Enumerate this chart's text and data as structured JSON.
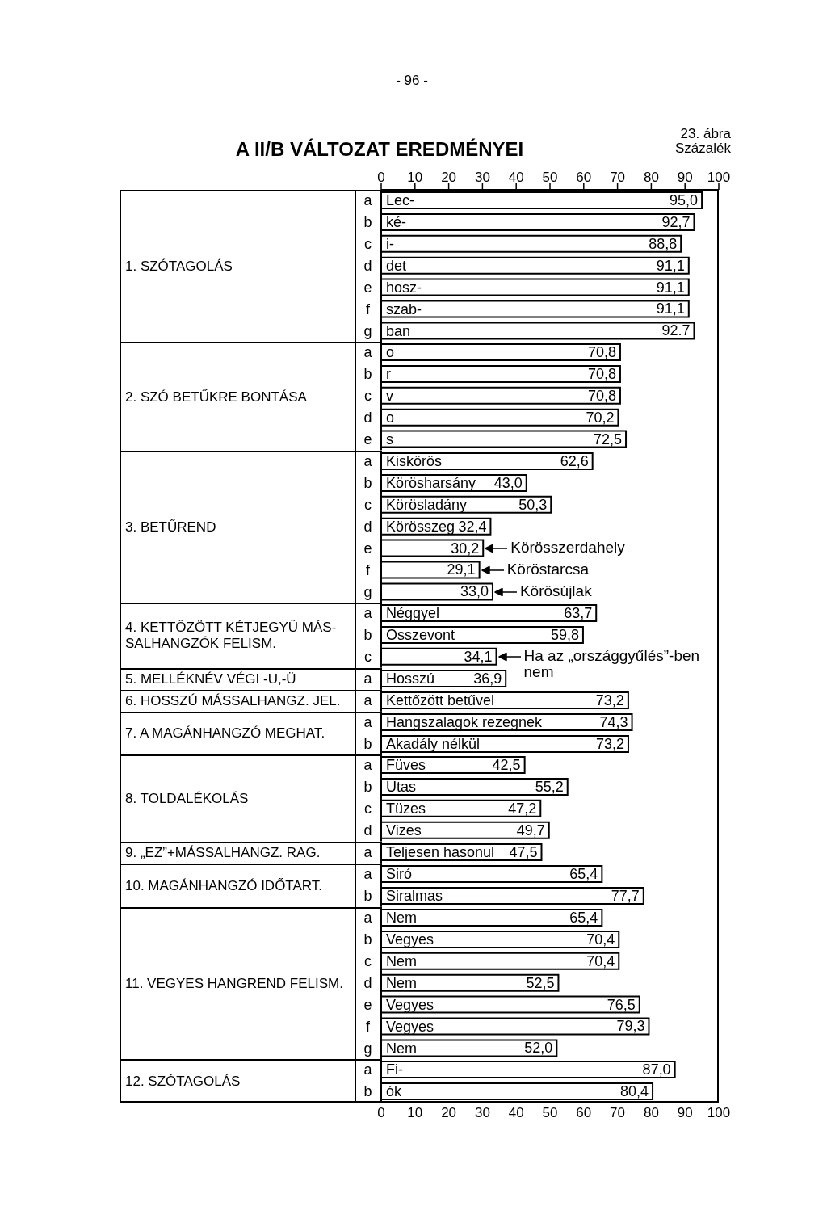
{
  "chart_data": [
    {
      "type": "bar",
      "orientation": "horizontal",
      "title": "A II/B VÁLTOZAT EREDMÉNYEI",
      "annotations": [
        "- 96 -",
        "23. ábra"
      ],
      "xlabel": "Százalék",
      "ylabel": "1. SZÓTAGOLÁS",
      "categories": [
        "a Lec-",
        "b ké-",
        "c i-",
        "d det",
        "e hosz-",
        "f szab-",
        "g ban"
      ],
      "values": [
        95.0,
        92.7,
        88.8,
        91.1,
        91.1,
        91.1,
        92.7
      ],
      "value_labels": [
        "95,0",
        "92,7",
        "88,8",
        "91,1",
        "91,1",
        "91,1",
        "92.7"
      ],
      "color": "#000000",
      "xlim": [
        0,
        100
      ],
      "xticks": [
        0,
        10,
        20,
        30,
        40,
        50,
        60,
        70,
        80,
        90,
        100
      ]
    },
    {
      "type": "bar",
      "orientation": "horizontal",
      "ylabel": "2. SZÓ BETŰKRE BONTÁSA",
      "categories": [
        "a o",
        "b r",
        "c v",
        "d o",
        "e s"
      ],
      "values": [
        70.8,
        70.8,
        70.8,
        70.2,
        72.5
      ],
      "value_labels": [
        "70,8",
        "70,8",
        "70,8",
        "70,2",
        "72,5"
      ],
      "color": "#000000",
      "xlim": [
        0,
        100
      ],
      "tick_labels": "y"
    },
    {
      "type": "bar",
      "orientation": "horizontal",
      "ylabel": "3. BETŰREND",
      "categories": [
        "a Kiskörös",
        "b Körösharsány",
        "c Körösladány",
        "d Körösszeg",
        "e",
        "f",
        "g"
      ],
      "values": [
        62.6,
        43.0,
        50.3,
        32.4,
        30.2,
        29.1,
        33.0
      ],
      "value_labels": [
        "62,6",
        "43,0",
        "50,3",
        "32,4",
        "30,2",
        "29,1",
        "33,0"
      ],
      "annotations": [
        {
          "text": "Körösszerdahely",
          "x": 30.2,
          "y": "e"
        },
        {
          "text": "Köröstarcsa",
          "x": 29.1,
          "y": "f"
        },
        {
          "text": "Körösújlak",
          "x": 33.0,
          "y": "g"
        }
      ],
      "color": "#000000",
      "xlim": [
        0,
        100
      ],
      "tick_labels": "y"
    },
    {
      "type": "bar",
      "orientation": "horizontal",
      "ylabel": "4. KETTŐZÖTT KÉTJEGYŰ MÁS-SALHANGZÓK FELISM.",
      "categories": [
        "a Néggyel",
        "b Összevont",
        "c"
      ],
      "values": [
        63.7,
        59.8,
        34.1
      ],
      "value_labels": [
        "63,7",
        "59,8",
        "34,1"
      ],
      "annotations": [
        {
          "text": "Ha az „országgyűlés”-ben nem",
          "x": 34.1,
          "y": "c"
        }
      ],
      "color": "#000000",
      "xlim": [
        0,
        100
      ],
      "tick_labels": "y"
    },
    {
      "type": "bar",
      "orientation": "horizontal",
      "ylabel": "5. MELLÉKNÉV VÉGI -U,-Ü",
      "categories": [
        "a Hosszú"
      ],
      "values": [
        36.9
      ],
      "value_labels": [
        "36,9"
      ],
      "color": "#000000",
      "xlim": [
        0,
        100
      ],
      "tick_labels": "y"
    },
    {
      "type": "bar",
      "orientation": "horizontal",
      "ylabel": "6. HOSSZÚ MÁSSALHANGZ. JEL.",
      "categories": [
        "a Kettőzött betűvel"
      ],
      "values": [
        73.2
      ],
      "value_labels": [
        "73,2"
      ],
      "color": "#000000",
      "xlim": [
        0,
        100
      ],
      "tick_labels": "y"
    },
    {
      "type": "bar",
      "orientation": "horizontal",
      "ylabel": "7. A MAGÁNHANGZÓ MEGHAT.",
      "categories": [
        "a Hangszalagok rezegnek",
        "b Akadály nélkül"
      ],
      "values": [
        74.3,
        73.2
      ],
      "value_labels": [
        "74,3",
        "73,2"
      ],
      "color": "#000000",
      "xlim": [
        0,
        100
      ],
      "tick_labels": "y"
    },
    {
      "type": "bar",
      "orientation": "horizontal",
      "ylabel": "8. TOLDALÉKOLÁS",
      "categories": [
        "a Füves",
        "b Utas",
        "c Tüzes",
        "d Vizes"
      ],
      "values": [
        42.5,
        55.2,
        47.2,
        49.7
      ],
      "value_labels": [
        "42,5",
        "55,2",
        "47,2",
        "49,7"
      ],
      "color": "#000000",
      "xlim": [
        0,
        100
      ],
      "tick_labels": "y"
    },
    {
      "type": "bar",
      "orientation": "horizontal",
      "ylabel": "9. „EZ”+MÁSSALHANGZ. RAG.",
      "categories": [
        "a Teljesen hasonul"
      ],
      "values": [
        47.5
      ],
      "value_labels": [
        "47,5"
      ],
      "color": "#000000",
      "xlim": [
        0,
        100
      ],
      "tick_labels": "y"
    },
    {
      "type": "bar",
      "orientation": "horizontal",
      "ylabel": "10. MAGÁNHANGZÓ IDŐTART.",
      "categories": [
        "a Siró",
        "b Siralmas"
      ],
      "values": [
        65.4,
        77.7
      ],
      "value_labels": [
        "65,4",
        "77,7"
      ],
      "color": "#000000",
      "xlim": [
        0,
        100
      ],
      "tick_labels": "y"
    },
    {
      "type": "bar",
      "orientation": "horizontal",
      "ylabel": "11. VEGYES HANGREND FELISM.",
      "categories": [
        "a Nem",
        "b Vegyes",
        "c Nem",
        "d Nem",
        "e Vegyes",
        "f Vegyes",
        "g Nem"
      ],
      "values": [
        65.4,
        70.4,
        70.4,
        52.5,
        76.5,
        79.3,
        52.0
      ],
      "value_labels": [
        "65,4",
        "70,4",
        "70,4",
        "52,5",
        "76,5",
        "79,3",
        "52,0"
      ],
      "color": "#000000",
      "xlim": [
        0,
        100
      ],
      "tick_labels": "y"
    },
    {
      "type": "bar",
      "orientation": "horizontal",
      "ylabel": "12. SZÓTAGOLÁS",
      "categories": [
        "a Fi-",
        "b ók"
      ],
      "values": [
        87.0,
        80.4
      ],
      "value_labels": [
        "87,0",
        "80,4"
      ],
      "color": "#000000",
      "xlim": [
        0,
        100
      ],
      "xticks": [
        0,
        10,
        20,
        30,
        40,
        50,
        60,
        70,
        80,
        90,
        100
      ]
    }
  ]
}
